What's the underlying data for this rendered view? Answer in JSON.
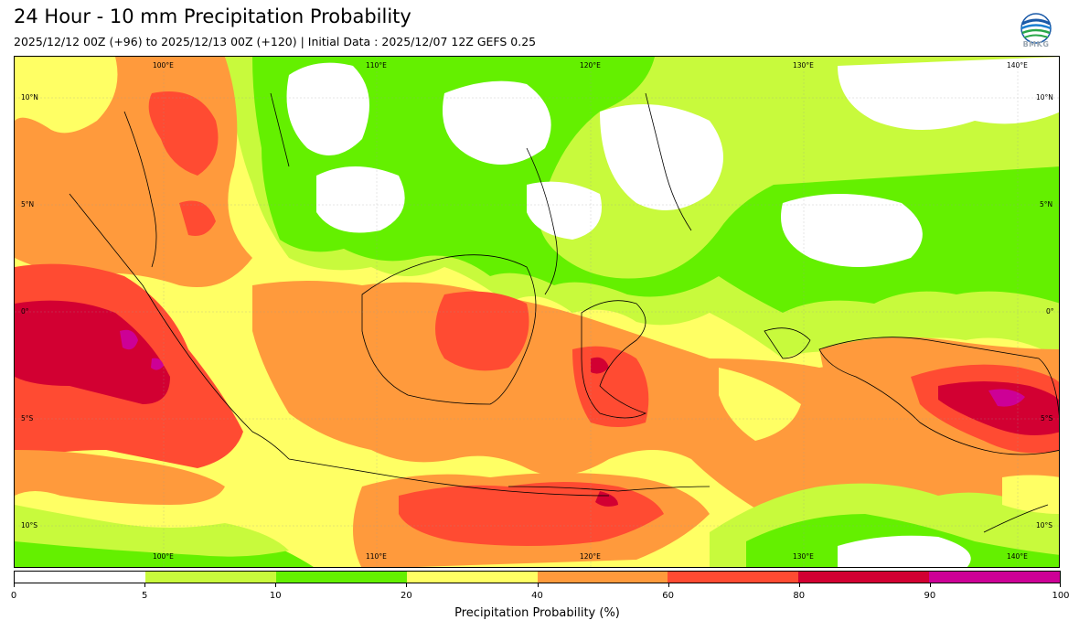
{
  "title": "24 Hour - 10 mm Precipitation Probability",
  "subtitle": "2025/12/12 00Z (+96) to 2025/12/13 00Z (+120) | Initial Data : 2025/12/07 12Z GEFS 0.25",
  "logo": {
    "text": "BMKG"
  },
  "map": {
    "lon_labels_top": [
      "100°E",
      "110°E",
      "120°E",
      "130°E",
      "140°E"
    ],
    "lon_labels_bottom": [
      "100°E",
      "110°E",
      "120°E",
      "130°E",
      "140°E"
    ],
    "lat_labels_left": [
      "10°N",
      "5°N",
      "0°",
      "5°S",
      "10°S"
    ],
    "lat_labels_right": [
      "10°N",
      "5°N",
      "0°",
      "5°S",
      "10°S"
    ]
  },
  "legend": {
    "label": "Precipitation Probability (%)",
    "ticks": [
      "0",
      "5",
      "10",
      "20",
      "40",
      "60",
      "80",
      "90",
      "100"
    ],
    "colors": [
      "#ffffff",
      "#c8fa3c",
      "#64f000",
      "#ffff64",
      "#ff9a3c",
      "#ff4b32",
      "#d20032",
      "#cd0096"
    ]
  }
}
